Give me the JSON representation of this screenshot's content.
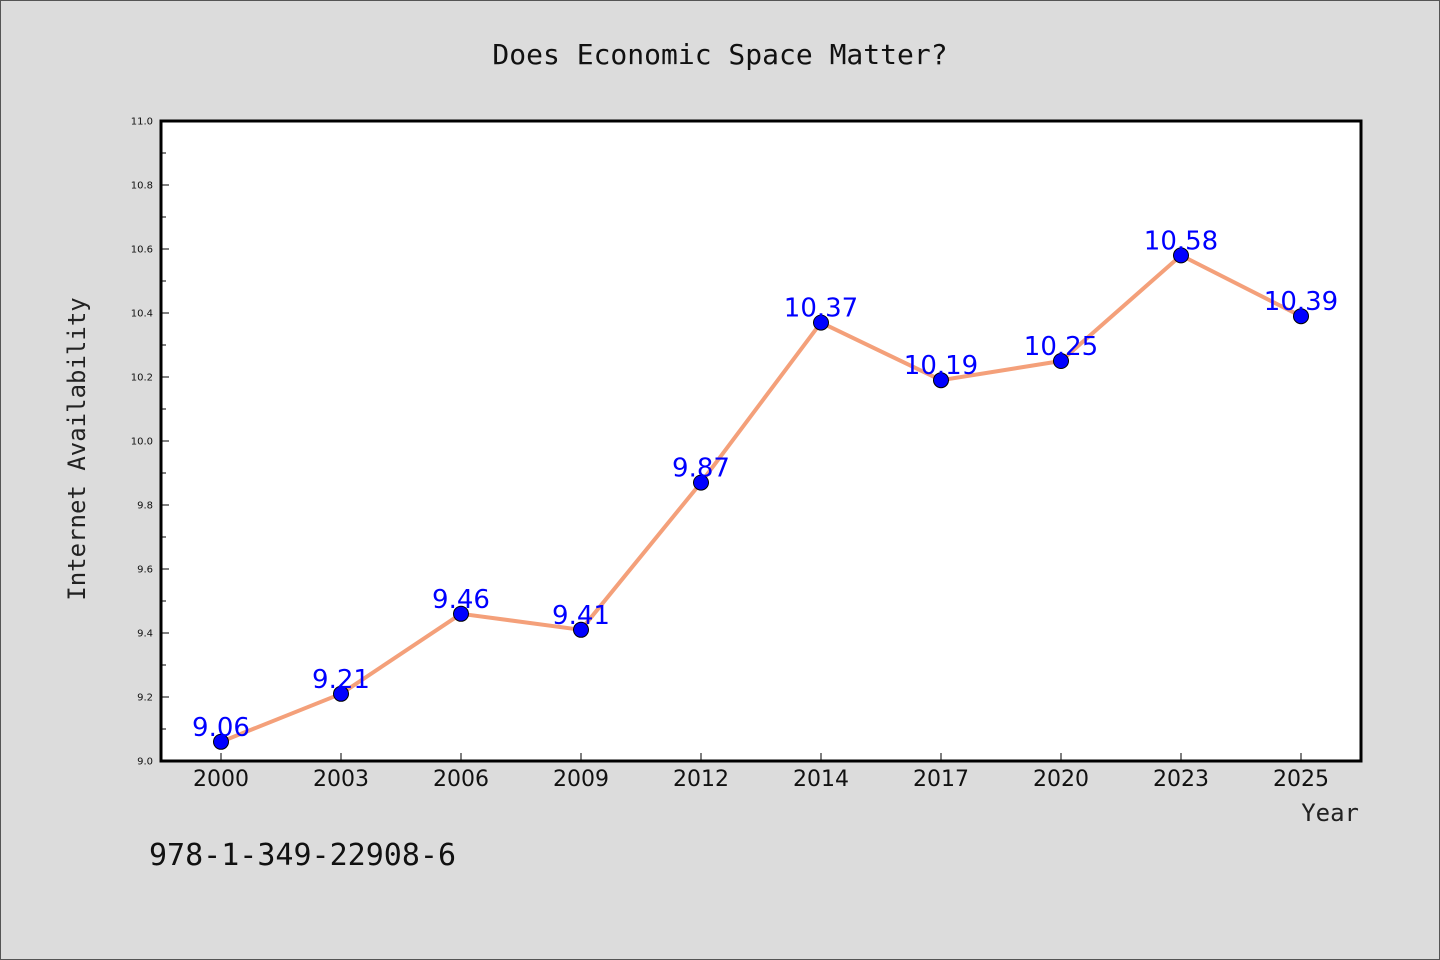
{
  "chart_data": {
    "type": "line",
    "title": "Does Economic Space Matter?",
    "xlabel": "Year",
    "ylabel": "Internet Availability",
    "categories": [
      "2000",
      "2003",
      "2006",
      "2009",
      "2012",
      "2014",
      "2017",
      "2020",
      "2023",
      "2025"
    ],
    "series": [
      {
        "values": [
          9.06,
          9.21,
          9.46,
          9.41,
          9.87,
          10.37,
          10.19,
          10.25,
          10.58,
          10.39
        ],
        "data_labels": [
          "9.06",
          "9.21",
          "9.46",
          "9.41",
          "9.87",
          "10.37",
          "10.19",
          "10.25",
          "10.58",
          "10.39"
        ],
        "line_color": "#f4a07a",
        "marker_color": "#0000ff"
      }
    ],
    "ylim": [
      9.0,
      11.0
    ],
    "yticks": [
      "9.0",
      "9.2",
      "9.4",
      "9.6",
      "9.8",
      "10.0",
      "10.2",
      "10.4",
      "10.6",
      "10.8",
      "11.0"
    ],
    "grid": false,
    "legend": "none"
  },
  "footer": {
    "isbn": "978-1-349-22908-6"
  }
}
